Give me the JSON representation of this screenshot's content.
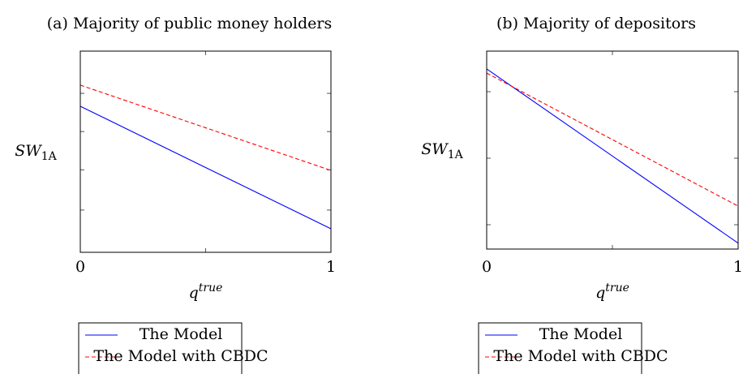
{
  "chart_data": [
    {
      "type": "line",
      "title": "(a) Majority of public money holders",
      "y_label": "SW",
      "y_label_sub": "1A",
      "x_label": "q",
      "x_label_sup": "true",
      "x": [
        0,
        1
      ],
      "xlim": [
        0,
        1
      ],
      "xticks": [
        0,
        1
      ],
      "minor_xticks": [
        0.5
      ],
      "ylim": [
        0,
        1
      ],
      "minor_yticks": [
        0.21,
        0.41,
        0.6,
        0.79
      ],
      "series": [
        {
          "name": "The Model",
          "color": "#0000ff",
          "dash": false,
          "values": [
            0.726,
            0.117
          ]
        },
        {
          "name": "The Model with CBDC",
          "color": "#ff0000",
          "dash": true,
          "values": [
            0.831,
            0.407
          ]
        }
      ]
    },
    {
      "type": "line",
      "title": "(b) Majority of depositors",
      "y_label": "SW",
      "y_label_sub": "1A",
      "x_label": "q",
      "x_label_sup": "true",
      "x": [
        0,
        1
      ],
      "xlim": [
        0,
        1
      ],
      "xticks": [
        0,
        1
      ],
      "minor_xticks": [
        0.5
      ],
      "ylim": [
        0,
        1
      ],
      "minor_yticks": [
        0.123,
        0.459,
        0.795
      ],
      "series": [
        {
          "name": "The Model",
          "color": "#0000ff",
          "dash": false,
          "values": [
            0.91,
            0.03
          ]
        },
        {
          "name": "The Model with CBDC",
          "color": "#ff0000",
          "dash": true,
          "values": [
            0.889,
            0.217
          ]
        }
      ]
    }
  ]
}
